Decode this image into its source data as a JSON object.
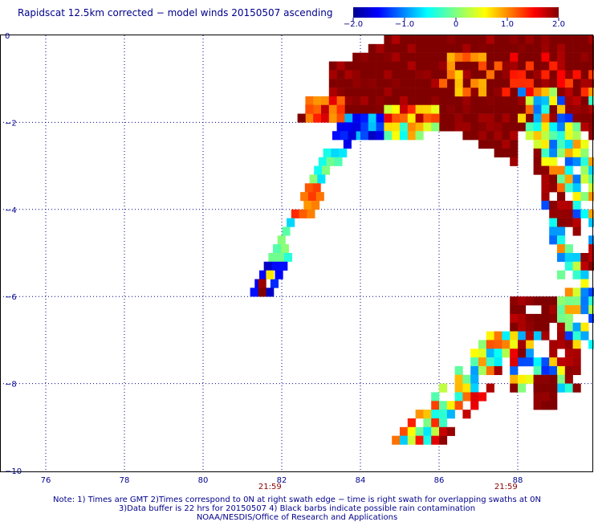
{
  "title": "Rapidscat 12.5km corrected − model winds 20150507 ascending",
  "colorbar": {
    "ticks": [
      "−2.0",
      "−1.0",
      "0",
      "1.0",
      "2.0"
    ],
    "range": [
      -2.0,
      2.0
    ]
  },
  "chart_data": {
    "type": "heatmap",
    "title": "Rapidscat 12.5km corrected − model winds 20150507 ascending",
    "xlim": [
      74.8,
      90
    ],
    "ylim": [
      -10,
      0
    ],
    "x_ticks": [
      "76",
      "78",
      "80",
      "82",
      "84",
      "86",
      "88"
    ],
    "y_ticks": [
      "0",
      "−2",
      "−4",
      "−6",
      "−8",
      "−10"
    ],
    "grid": "dotted",
    "cell_size_deg": 0.2,
    "colorscale_range": [
      -2.0,
      2.0
    ],
    "swath_times": [
      {
        "lon": 81.7,
        "time": "21:59"
      },
      {
        "lon": 87.7,
        "time": "21:59"
      }
    ]
  },
  "notes": [
    "Note: 1) Times are GMT 2)Times correspond to 0N at right swath edge − time is right swath for overlapping swaths at 0N",
    "3)Data buffer is 22 hrs for 20150507 4) Black barbs indicate possible rain contamination",
    "NOAA/NESDIS/Office of Research and Applications"
  ],
  "colors": {
    "text": "#00008b",
    "time_label": "#8b0000",
    "grid": "#00008b"
  }
}
